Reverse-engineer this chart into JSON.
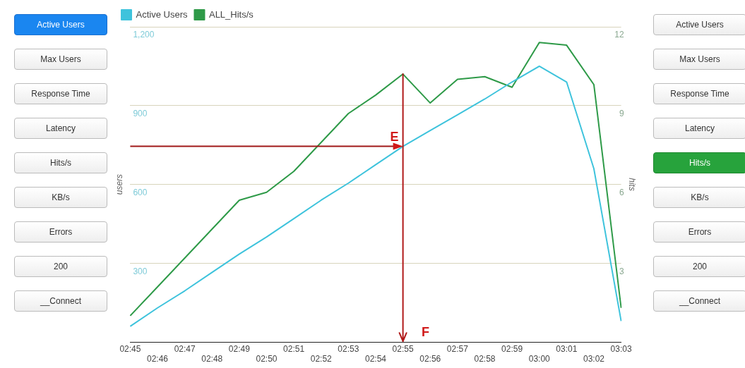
{
  "chart_data": {
    "type": "line",
    "categories": [
      "02:45",
      "02:46",
      "02:47",
      "02:48",
      "02:49",
      "02:50",
      "02:51",
      "02:52",
      "02:53",
      "02:54",
      "02:55",
      "02:56",
      "02:57",
      "02:58",
      "02:59",
      "03:00",
      "03:01",
      "03:02",
      "03:03"
    ],
    "series": [
      {
        "name": "Active Users",
        "color": "#3ec3dc",
        "values": [
          60,
          130,
          195,
          265,
          335,
          400,
          470,
          540,
          605,
          675,
          745,
          805,
          865,
          925,
          990,
          1050,
          990,
          660,
          80
        ]
      },
      {
        "name": "ALL_Hits/s",
        "color": "#2e9a48",
        "axis": "y2",
        "values": [
          1.0,
          2.1,
          3.2,
          4.3,
          5.4,
          5.7,
          6.5,
          7.6,
          8.7,
          9.4,
          10.2,
          9.1,
          10.0,
          10.1,
          9.7,
          11.4,
          11.3,
          9.8,
          1.3
        ]
      }
    ],
    "ylabel": "users",
    "y2label": "hits",
    "ylim": [
      0,
      1200
    ],
    "yticks": [
      300,
      600,
      900,
      {
        "value": 1200,
        "label": "1,200"
      }
    ],
    "y2lim": [
      0,
      12
    ],
    "y2ticks": [
      3,
      6,
      9,
      12
    ],
    "ref_lines": [
      {
        "axis": "x",
        "value": "02:55",
        "label": "F",
        "color": "#b01818"
      }
    ],
    "grid": "y",
    "legend": "top left",
    "marker": "none",
    "line_style": "solid",
    "annotations": [
      {
        "text": "E",
        "x": "02:55",
        "y": 745
      },
      "Active Users",
      "Max Users",
      "Response Time",
      "Latency",
      "Hits/s",
      "KB/s",
      "Errors",
      "200",
      "__Connect",
      "Active Users",
      "Max Users",
      "Response Time",
      "Latency",
      "Hits/s",
      "KB/s",
      "Errors",
      "200",
      "__Connect"
    ]
  }
}
